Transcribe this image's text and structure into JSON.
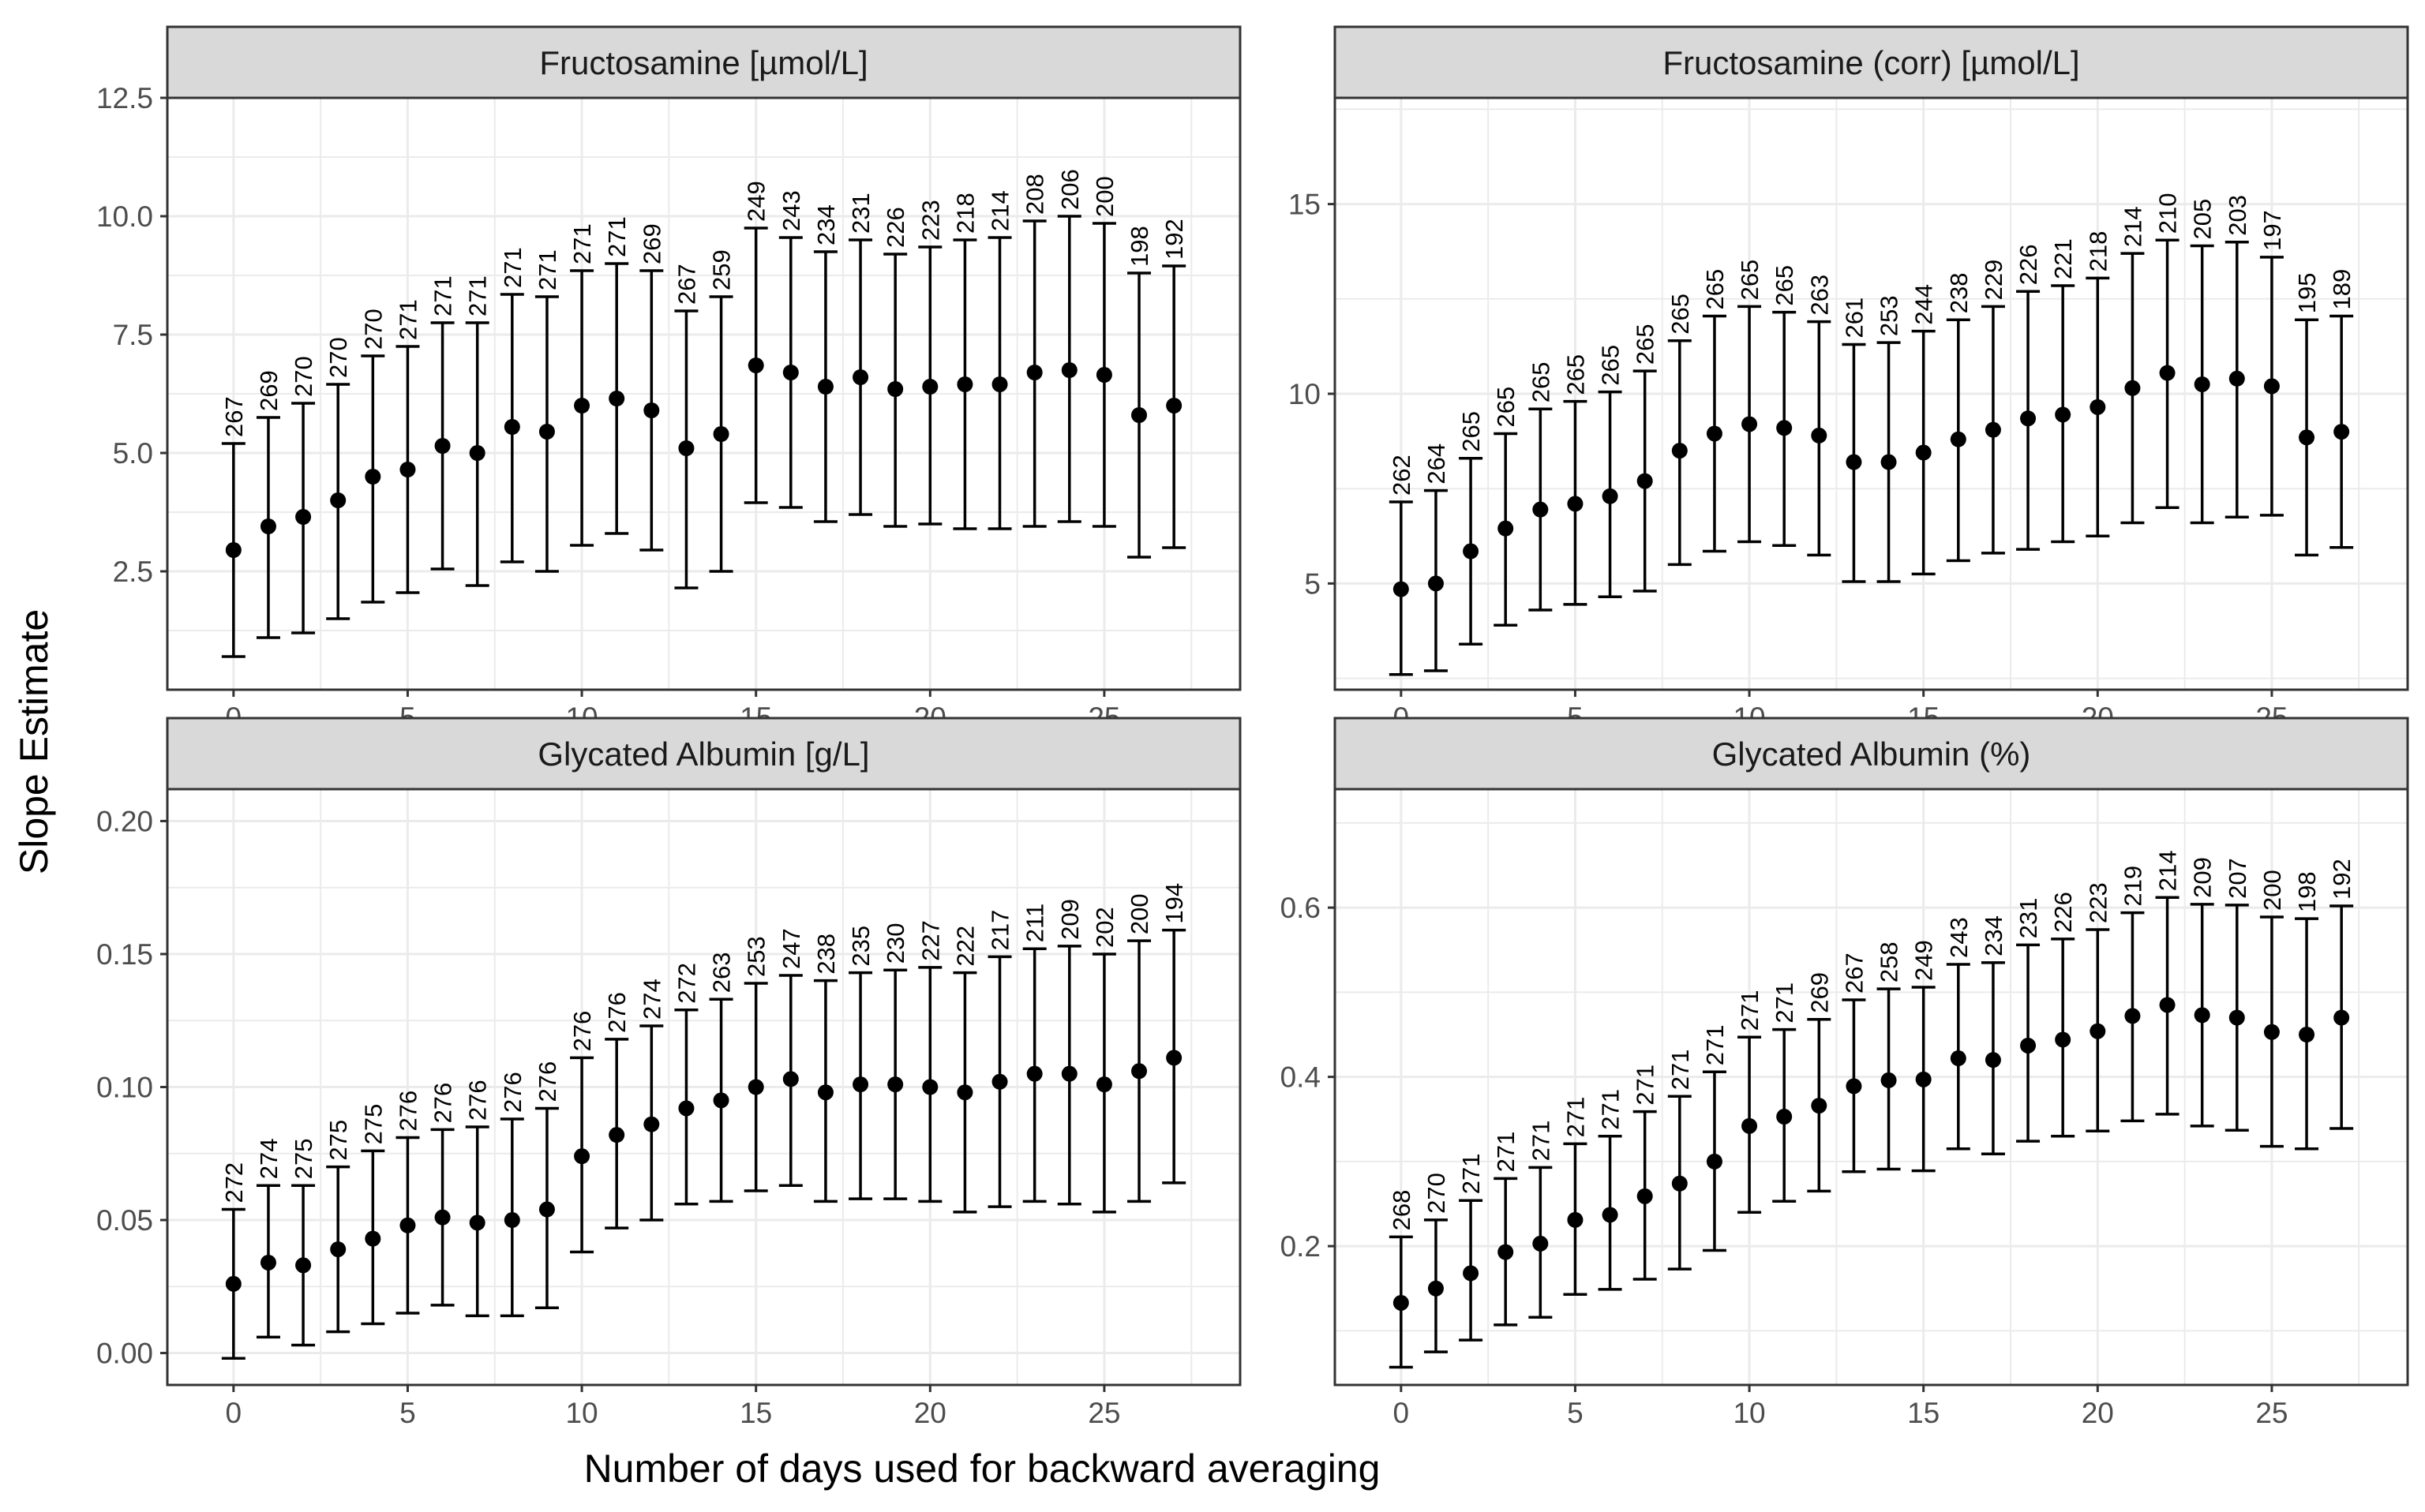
{
  "figure": {
    "ylabel": "Slope Estimate",
    "xlabel": "Number of days used for backward averaging",
    "colors": {
      "background": "#ffffff",
      "panel_border": "#333333",
      "strip_fill": "#d9d9d9",
      "grid": "#ebebeb",
      "ink": "#000000",
      "tick_text": "#4d4d4d"
    }
  },
  "chart_data": [
    {
      "type": "errorbar",
      "title": "Fructosamine [µmol/L]",
      "xlabel": "Number of days used for backward averaging",
      "ylabel": "Slope Estimate",
      "xlim": [
        -1.9,
        28.9
      ],
      "ylim": [
        0,
        12.5
      ],
      "xticks": [
        0,
        5,
        10,
        15,
        20,
        25
      ],
      "xtick_labels": [
        "0",
        "5",
        "10",
        "15",
        "20",
        "25"
      ],
      "yticks": [
        2.5,
        5.0,
        7.5,
        10.0,
        12.5
      ],
      "ytick_labels": [
        "2.5",
        "5.0",
        "7.5",
        "10.0",
        "12.5"
      ],
      "x": [
        0,
        1,
        2,
        3,
        4,
        5,
        6,
        7,
        8,
        9,
        10,
        11,
        12,
        13,
        14,
        15,
        16,
        17,
        18,
        19,
        20,
        21,
        22,
        23,
        24,
        25,
        26,
        27
      ],
      "estimate": [
        2.95,
        3.45,
        3.65,
        4.0,
        4.5,
        4.65,
        5.15,
        5.0,
        5.55,
        5.45,
        6.0,
        6.15,
        5.9,
        5.1,
        5.4,
        6.85,
        6.7,
        6.4,
        6.6,
        6.35,
        6.4,
        6.45,
        6.45,
        6.7,
        6.75,
        6.65,
        5.8,
        6.0
      ],
      "lower": [
        0.7,
        1.1,
        1.2,
        1.5,
        1.85,
        2.05,
        2.55,
        2.2,
        2.7,
        2.5,
        3.05,
        3.3,
        2.95,
        2.15,
        2.5,
        3.95,
        3.85,
        3.55,
        3.7,
        3.45,
        3.5,
        3.4,
        3.4,
        3.45,
        3.55,
        3.45,
        2.8,
        3.0
      ],
      "upper": [
        5.2,
        5.75,
        6.05,
        6.45,
        7.05,
        7.25,
        7.75,
        7.75,
        8.35,
        8.3,
        8.85,
        9.0,
        8.85,
        8.0,
        8.3,
        9.75,
        9.55,
        9.25,
        9.5,
        9.2,
        9.35,
        9.5,
        9.55,
        9.9,
        10.0,
        9.85,
        8.8,
        8.95
      ],
      "n_labels": [
        "267",
        "269",
        "270",
        "270",
        "270",
        "271",
        "271",
        "271",
        "271",
        "271",
        "271",
        "271",
        "269",
        "267",
        "259",
        "249",
        "243",
        "234",
        "231",
        "226",
        "223",
        "218",
        "214",
        "208",
        "206",
        "200",
        "198",
        "192"
      ]
    },
    {
      "type": "errorbar",
      "title": "Fructosamine (corr) [µmol/L]",
      "xlabel": "Number of days used for backward averaging",
      "ylabel": "Slope Estimate",
      "xlim": [
        -1.9,
        28.9
      ],
      "ylim": [
        2.2,
        17.8
      ],
      "xticks": [
        0,
        5,
        10,
        15,
        20,
        25
      ],
      "xtick_labels": [
        "0",
        "5",
        "10",
        "15",
        "20",
        "25"
      ],
      "yticks": [
        5,
        10,
        15
      ],
      "ytick_labels": [
        "5",
        "10",
        "15"
      ],
      "x": [
        0,
        1,
        2,
        3,
        4,
        5,
        6,
        7,
        8,
        9,
        10,
        11,
        12,
        13,
        14,
        15,
        16,
        17,
        18,
        19,
        20,
        21,
        22,
        23,
        24,
        25,
        26,
        27
      ],
      "estimate": [
        4.85,
        5.0,
        5.85,
        6.45,
        6.95,
        7.1,
        7.3,
        7.7,
        8.5,
        8.95,
        9.2,
        9.1,
        8.9,
        8.2,
        8.2,
        8.45,
        8.8,
        9.05,
        9.35,
        9.45,
        9.65,
        10.15,
        10.55,
        10.25,
        10.4,
        10.2,
        8.85,
        9.0
      ],
      "lower": [
        2.6,
        2.7,
        3.4,
        3.9,
        4.3,
        4.45,
        4.65,
        4.8,
        5.5,
        5.85,
        6.1,
        6.0,
        5.75,
        5.05,
        5.05,
        5.25,
        5.6,
        5.8,
        5.9,
        6.1,
        6.25,
        6.6,
        7.0,
        6.6,
        6.75,
        6.8,
        5.75,
        5.95
      ],
      "upper": [
        7.15,
        7.45,
        8.3,
        8.95,
        9.6,
        9.8,
        10.05,
        10.6,
        11.4,
        12.05,
        12.3,
        12.15,
        11.9,
        11.3,
        11.35,
        11.65,
        11.95,
        12.3,
        12.7,
        12.85,
        13.05,
        13.7,
        14.05,
        13.9,
        14.0,
        13.6,
        11.95,
        12.05
      ],
      "n_labels": [
        "262",
        "264",
        "265",
        "265",
        "265",
        "265",
        "265",
        "265",
        "265",
        "265",
        "265",
        "265",
        "263",
        "261",
        "253",
        "244",
        "238",
        "229",
        "226",
        "221",
        "218",
        "214",
        "210",
        "205",
        "203",
        "197",
        "195",
        "189"
      ]
    },
    {
      "type": "errorbar",
      "title": "Glycated Albumin [g/L]",
      "xlabel": "Number of days used for backward averaging",
      "ylabel": "Slope Estimate",
      "xlim": [
        -1.9,
        28.9
      ],
      "ylim": [
        -0.012,
        0.212
      ],
      "xticks": [
        0,
        5,
        10,
        15,
        20,
        25
      ],
      "xtick_labels": [
        "0",
        "5",
        "10",
        "15",
        "20",
        "25"
      ],
      "yticks": [
        0.0,
        0.05,
        0.1,
        0.15,
        0.2
      ],
      "ytick_labels": [
        "0.00",
        "0.05",
        "0.10",
        "0.15",
        "0.20"
      ],
      "x": [
        0,
        1,
        2,
        3,
        4,
        5,
        6,
        7,
        8,
        9,
        10,
        11,
        12,
        13,
        14,
        15,
        16,
        17,
        18,
        19,
        20,
        21,
        22,
        23,
        24,
        25,
        26,
        27
      ],
      "estimate": [
        0.026,
        0.034,
        0.033,
        0.039,
        0.043,
        0.048,
        0.051,
        0.049,
        0.05,
        0.054,
        0.074,
        0.082,
        0.086,
        0.092,
        0.095,
        0.1,
        0.103,
        0.098,
        0.101,
        0.101,
        0.1,
        0.098,
        0.102,
        0.105,
        0.105,
        0.101,
        0.106,
        0.111
      ],
      "lower": [
        -0.002,
        0.006,
        0.003,
        0.008,
        0.011,
        0.015,
        0.018,
        0.014,
        0.014,
        0.017,
        0.038,
        0.047,
        0.05,
        0.056,
        0.057,
        0.061,
        0.063,
        0.057,
        0.058,
        0.058,
        0.057,
        0.053,
        0.055,
        0.057,
        0.056,
        0.053,
        0.057,
        0.064
      ],
      "upper": [
        0.054,
        0.063,
        0.063,
        0.07,
        0.076,
        0.081,
        0.084,
        0.085,
        0.088,
        0.092,
        0.111,
        0.118,
        0.123,
        0.129,
        0.133,
        0.139,
        0.142,
        0.14,
        0.143,
        0.144,
        0.145,
        0.143,
        0.149,
        0.152,
        0.153,
        0.15,
        0.155,
        0.159
      ],
      "n_labels": [
        "272",
        "274",
        "275",
        "275",
        "275",
        "276",
        "276",
        "276",
        "276",
        "276",
        "276",
        "276",
        "274",
        "272",
        "263",
        "253",
        "247",
        "238",
        "235",
        "230",
        "227",
        "222",
        "217",
        "211",
        "209",
        "202",
        "200",
        "194"
      ]
    },
    {
      "type": "errorbar",
      "title": "Glycated Albumin (%)",
      "xlabel": "Number of days used for backward averaging",
      "ylabel": "Slope Estimate",
      "xlim": [
        -1.9,
        28.9
      ],
      "ylim": [
        0.036,
        0.74
      ],
      "xticks": [
        0,
        5,
        10,
        15,
        20,
        25
      ],
      "xtick_labels": [
        "0",
        "5",
        "10",
        "15",
        "20",
        "25"
      ],
      "yticks": [
        0.2,
        0.4,
        0.6
      ],
      "ytick_labels": [
        "0.2",
        "0.4",
        "0.6"
      ],
      "x": [
        0,
        1,
        2,
        3,
        4,
        5,
        6,
        7,
        8,
        9,
        10,
        11,
        12,
        13,
        14,
        15,
        16,
        17,
        18,
        19,
        20,
        21,
        22,
        23,
        24,
        25,
        26,
        27
      ],
      "estimate": [
        0.133,
        0.15,
        0.168,
        0.193,
        0.203,
        0.231,
        0.237,
        0.259,
        0.274,
        0.3,
        0.342,
        0.353,
        0.366,
        0.389,
        0.396,
        0.397,
        0.422,
        0.42,
        0.437,
        0.444,
        0.454,
        0.472,
        0.485,
        0.473,
        0.47,
        0.453,
        0.45,
        0.47
      ],
      "lower": [
        0.057,
        0.075,
        0.089,
        0.107,
        0.116,
        0.143,
        0.149,
        0.161,
        0.173,
        0.195,
        0.24,
        0.253,
        0.265,
        0.288,
        0.291,
        0.289,
        0.315,
        0.309,
        0.324,
        0.33,
        0.336,
        0.348,
        0.356,
        0.342,
        0.337,
        0.318,
        0.315,
        0.339
      ],
      "upper": [
        0.211,
        0.231,
        0.254,
        0.28,
        0.293,
        0.321,
        0.33,
        0.359,
        0.377,
        0.406,
        0.447,
        0.456,
        0.468,
        0.491,
        0.504,
        0.506,
        0.533,
        0.535,
        0.556,
        0.563,
        0.574,
        0.594,
        0.612,
        0.604,
        0.603,
        0.589,
        0.587,
        0.602
      ],
      "n_labels": [
        "268",
        "270",
        "271",
        "271",
        "271",
        "271",
        "271",
        "271",
        "271",
        "271",
        "271",
        "271",
        "269",
        "267",
        "258",
        "249",
        "243",
        "234",
        "231",
        "226",
        "223",
        "219",
        "214",
        "209",
        "207",
        "200",
        "198",
        "192"
      ]
    }
  ]
}
